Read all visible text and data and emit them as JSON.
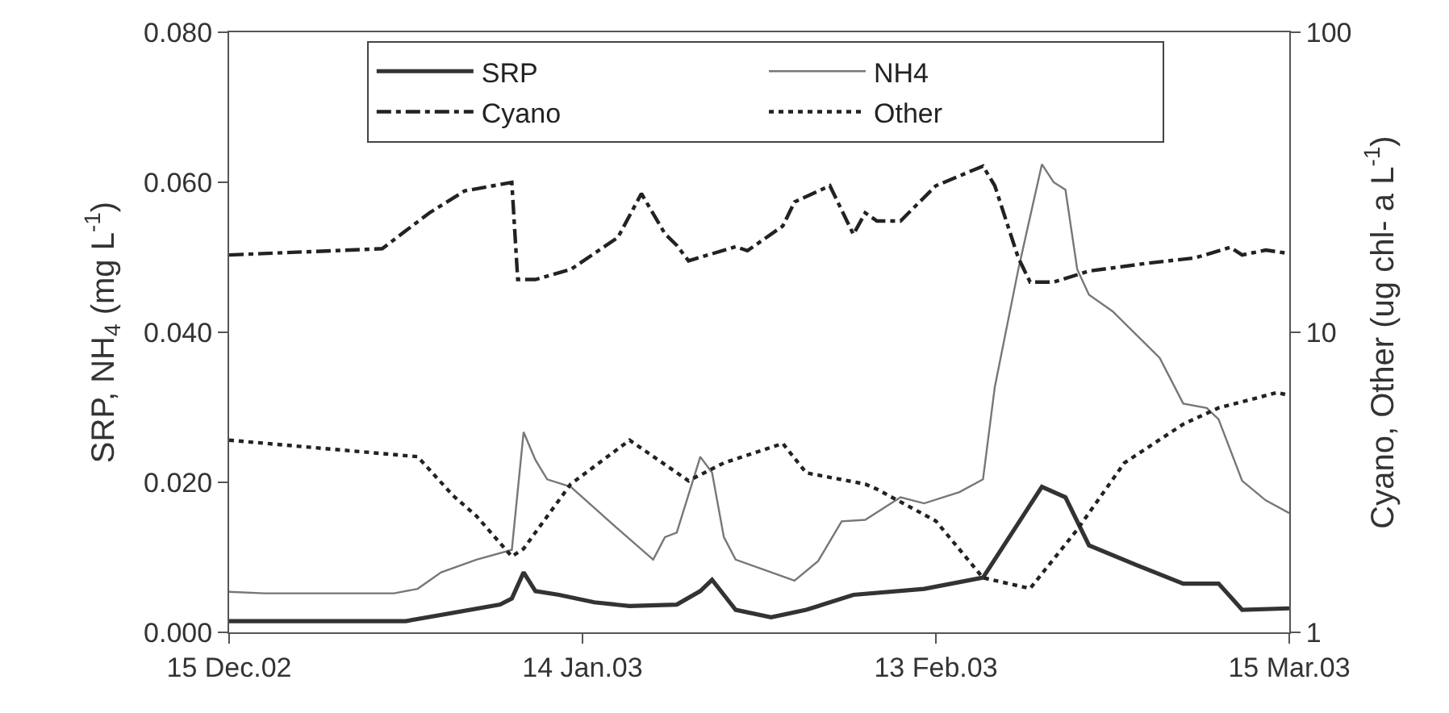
{
  "chart_data": {
    "type": "line",
    "ylabel": "SRP, NH$_{4}$ (mg L$^{-1}$)",
    "y2label": "Cyano, Other (ug chl- a L$^{-1}$)",
    "xlim": [
      "2002-12-15",
      "2003-03-15"
    ],
    "xticks": [
      {
        "value": "2002-12-15",
        "label": "15 Dec.02"
      },
      {
        "value": "2003-01-14",
        "label": "14 Jan.03"
      },
      {
        "value": "2003-02-13",
        "label": "13 Feb.03"
      },
      {
        "value": "2003-03-15",
        "label": "15 Mar.03"
      }
    ],
    "ylim": [
      0,
      0.08
    ],
    "yticks": [
      {
        "value": 0,
        "label": "0.000"
      },
      {
        "value": 0.02,
        "label": "0.020"
      },
      {
        "value": 0.04,
        "label": "0.040"
      },
      {
        "value": 0.06,
        "label": "0.060"
      },
      {
        "value": 0.08,
        "label": "0.080"
      }
    ],
    "y2lim": [
      1,
      100
    ],
    "y2ticks": [
      1,
      10,
      100
    ],
    "log": "y2",
    "grid": false,
    "legend": "top",
    "marker": "none",
    "series": [
      {
        "name": "SRP",
        "color": "#333333",
        "line_style": "solid",
        "x": [
          "2002-12-15",
          "2002-12-30",
          "2003-01-07",
          "2003-01-08",
          "2003-01-09",
          "2003-01-10",
          "2003-01-12",
          "2003-01-15",
          "2003-01-18",
          "2003-01-22",
          "2003-01-24",
          "2003-01-25",
          "2003-01-26",
          "2003-01-27",
          "2003-01-30",
          "2003-02-02",
          "2003-02-06",
          "2003-02-12",
          "2003-02-17",
          "2003-02-22",
          "2003-02-24",
          "2003-02-26",
          "2003-03-02",
          "2003-03-06",
          "2003-03-09",
          "2003-03-11",
          "2003-03-15"
        ],
        "values": [
          0.0015,
          0.0015,
          0.0037,
          0.0045,
          0.008,
          0.0055,
          0.005,
          0.004,
          0.0035,
          0.0037,
          0.0055,
          0.007,
          0.005,
          0.003,
          0.002,
          0.003,
          0.005,
          0.0058,
          0.0073,
          0.0194,
          0.018,
          0.0116,
          0.009,
          0.0065,
          0.0065,
          0.003,
          0.0032
        ]
      },
      {
        "name": "NH4",
        "color": "#777777",
        "line_style": "solid",
        "x": [
          "2002-12-15",
          "2002-12-18",
          "2002-12-29",
          "2002-12-31",
          "2003-01-02",
          "2003-01-05",
          "2003-01-08",
          "2003-01-09",
          "2003-01-10",
          "2003-01-11",
          "2003-01-13",
          "2003-01-15",
          "2003-01-17",
          "2003-01-20",
          "2003-01-21",
          "2003-01-22",
          "2003-01-24",
          "2003-01-25",
          "2003-01-26",
          "2003-01-27",
          "2003-02-01",
          "2003-02-03",
          "2003-02-05",
          "2003-02-07",
          "2003-02-10",
          "2003-02-12",
          "2003-02-15",
          "2003-02-17",
          "2003-02-18",
          "2003-02-20",
          "2003-02-22",
          "2003-02-23",
          "2003-02-24",
          "2003-02-25",
          "2003-02-26",
          "2003-02-28",
          "2003-03-04",
          "2003-03-06",
          "2003-03-08",
          "2003-03-09",
          "2003-03-11",
          "2003-03-13",
          "2003-03-15"
        ],
        "values": [
          0.0054,
          0.0052,
          0.0052,
          0.0058,
          0.008,
          0.0097,
          0.011,
          0.0267,
          0.023,
          0.0204,
          0.0194,
          0.0166,
          0.0138,
          0.0097,
          0.0127,
          0.0133,
          0.0234,
          0.0213,
          0.0127,
          0.0097,
          0.0069,
          0.0095,
          0.0148,
          0.015,
          0.018,
          0.0172,
          0.0187,
          0.0204,
          0.0327,
          0.0484,
          0.0624,
          0.06,
          0.059,
          0.0484,
          0.045,
          0.0428,
          0.0366,
          0.0305,
          0.0299,
          0.0284,
          0.0202,
          0.0176,
          0.0159
        ]
      },
      {
        "name": "Cyano",
        "color": "#222222",
        "line_style": "dashdot",
        "axis": "y2",
        "x": [
          "2002-12-15",
          "2002-12-28",
          "2002-12-30",
          "2003-01-01",
          "2003-01-04",
          "2003-01-08",
          "2003-01-08T12:00",
          "2003-01-10",
          "2003-01-13",
          "2003-01-17",
          "2003-01-19",
          "2003-01-21",
          "2003-01-22",
          "2003-01-23",
          "2003-01-27",
          "2003-01-28",
          "2003-01-31",
          "2003-02-01",
          "2003-02-04",
          "2003-02-06",
          "2003-02-07",
          "2003-02-08",
          "2003-02-10",
          "2003-02-13",
          "2003-02-17",
          "2003-02-18",
          "2003-02-20",
          "2003-02-21",
          "2003-02-23",
          "2003-02-26",
          "2003-03-03",
          "2003-03-07",
          "2003-03-10",
          "2003-03-11",
          "2003-03-13",
          "2003-03-15"
        ],
        "values": [
          18.1,
          19.0,
          21.8,
          25.0,
          29.6,
          31.6,
          15.0,
          15.0,
          16.2,
          20.7,
          29,
          21.3,
          19.5,
          17.3,
          19.3,
          18.7,
          22.6,
          27.2,
          30.8,
          21.2,
          25,
          23.5,
          23.5,
          30.8,
          35.8,
          30.8,
          17.7,
          14.7,
          14.7,
          16,
          17.0,
          17.7,
          19.2,
          18.1,
          18.8,
          18.3
        ]
      },
      {
        "name": "Other",
        "color": "#222222",
        "line_style": "dotted",
        "axis": "y2",
        "x": [
          "2002-12-15",
          "2002-12-31",
          "2003-01-03",
          "2003-01-05",
          "2003-01-08",
          "2003-01-09",
          "2003-01-13",
          "2003-01-18",
          "2003-01-23",
          "2003-01-26",
          "2003-01-31",
          "2003-02-02",
          "2003-02-07",
          "2003-02-08",
          "2003-02-13",
          "2003-02-17",
          "2003-02-21",
          "2003-02-25",
          "2003-03-01",
          "2003-03-06",
          "2003-03-09",
          "2003-03-14",
          "2003-03-15"
        ],
        "values": [
          4.37,
          3.85,
          2.86,
          2.44,
          1.79,
          1.9,
          3.12,
          4.37,
          3.2,
          3.67,
          4.26,
          3.4,
          3.12,
          3.0,
          2.35,
          1.52,
          1.4,
          2.2,
          3.67,
          4.94,
          5.6,
          6.3,
          6.16
        ]
      }
    ]
  }
}
